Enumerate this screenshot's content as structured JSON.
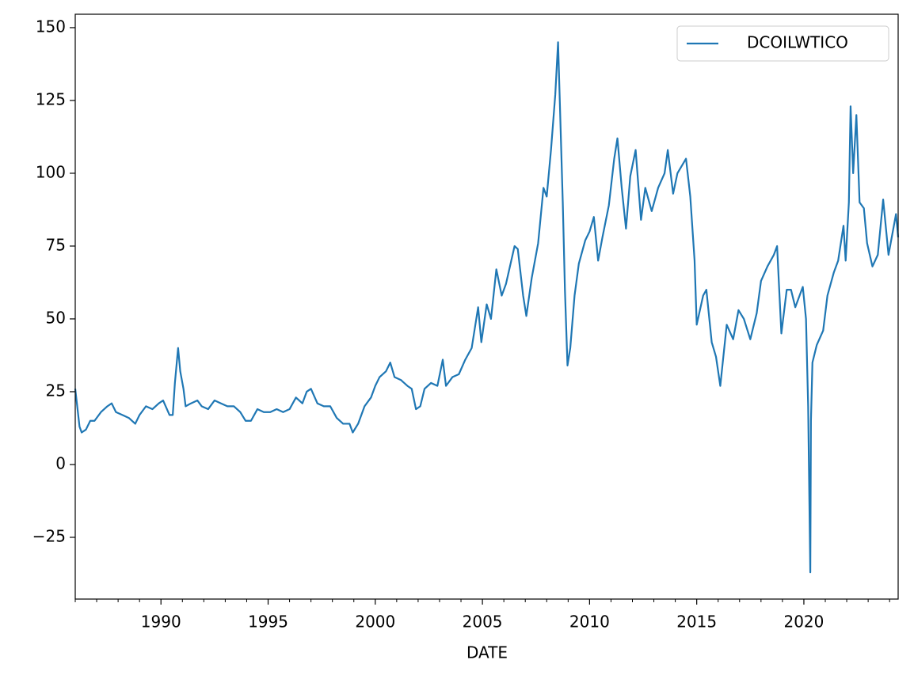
{
  "chart_data": {
    "type": "line",
    "xlabel": "DATE",
    "x": [
      1986.0,
      1986.2,
      1986.3,
      1986.5,
      1986.7,
      1986.9,
      1987.2,
      1987.5,
      1987.7,
      1987.9,
      1988.2,
      1988.5,
      1988.8,
      1989.0,
      1989.3,
      1989.6,
      1989.9,
      1990.1,
      1990.4,
      1990.55,
      1990.65,
      1990.8,
      1990.9,
      1991.05,
      1991.15,
      1991.4,
      1991.7,
      1991.9,
      1992.2,
      1992.5,
      1992.8,
      1993.1,
      1993.4,
      1993.7,
      1993.95,
      1994.2,
      1994.5,
      1994.8,
      1995.1,
      1995.4,
      1995.7,
      1996.0,
      1996.3,
      1996.6,
      1996.8,
      1997.0,
      1997.3,
      1997.6,
      1997.9,
      1998.2,
      1998.5,
      1998.8,
      1998.95,
      1999.2,
      1999.5,
      1999.8,
      2000.0,
      2000.2,
      2000.5,
      2000.7,
      2000.9,
      2001.2,
      2001.5,
      2001.7,
      2001.9,
      2002.1,
      2002.3,
      2002.6,
      2002.9,
      2003.15,
      2003.3,
      2003.6,
      2003.9,
      2004.2,
      2004.5,
      2004.8,
      2004.95,
      2005.2,
      2005.4,
      2005.65,
      2005.9,
      2006.1,
      2006.5,
      2006.65,
      2006.9,
      2007.05,
      2007.3,
      2007.6,
      2007.85,
      2008.0,
      2008.2,
      2008.4,
      2008.53,
      2008.65,
      2008.75,
      2008.85,
      2008.97,
      2009.1,
      2009.3,
      2009.5,
      2009.8,
      2010.0,
      2010.2,
      2010.4,
      2010.6,
      2010.9,
      2011.15,
      2011.3,
      2011.5,
      2011.7,
      2011.9,
      2012.15,
      2012.4,
      2012.6,
      2012.9,
      2013.2,
      2013.5,
      2013.65,
      2013.9,
      2014.1,
      2014.5,
      2014.7,
      2014.9,
      2015.0,
      2015.3,
      2015.45,
      2015.7,
      2015.9,
      2016.1,
      2016.4,
      2016.7,
      2016.95,
      2017.2,
      2017.5,
      2017.8,
      2018.0,
      2018.3,
      2018.6,
      2018.75,
      2018.95,
      2019.2,
      2019.4,
      2019.6,
      2019.95,
      2020.1,
      2020.2,
      2020.3,
      2020.33,
      2020.4,
      2020.6,
      2020.9,
      2021.1,
      2021.4,
      2021.6,
      2021.85,
      2021.95,
      2022.1,
      2022.18,
      2022.3,
      2022.45,
      2022.6,
      2022.8,
      2022.95,
      2023.2,
      2023.45,
      2023.7,
      2023.95,
      2024.15,
      2024.3,
      2024.4
    ],
    "series": [
      {
        "name": "DCOILWTICO",
        "color": "#1f77b4",
        "values": [
          26,
          13,
          11,
          12,
          15,
          15,
          18,
          20,
          21,
          18,
          17,
          16,
          14,
          17,
          20,
          19,
          21,
          22,
          17,
          17,
          28,
          40,
          32,
          26,
          20,
          21,
          22,
          20,
          19,
          22,
          21,
          20,
          20,
          18,
          15,
          15,
          19,
          18,
          18,
          19,
          18,
          19,
          23,
          21,
          25,
          26,
          21,
          20,
          20,
          16,
          14,
          14,
          11,
          14,
          20,
          23,
          27,
          30,
          32,
          35,
          30,
          29,
          27,
          26,
          19,
          20,
          26,
          28,
          27,
          36,
          27,
          30,
          31,
          36,
          40,
          54,
          42,
          55,
          50,
          67,
          58,
          62,
          75,
          74,
          58,
          51,
          64,
          76,
          95,
          92,
          108,
          127,
          145,
          115,
          90,
          60,
          34,
          40,
          58,
          69,
          77,
          80,
          85,
          70,
          78,
          89,
          105,
          112,
          95,
          81,
          99,
          108,
          84,
          95,
          87,
          95,
          100,
          108,
          93,
          100,
          105,
          92,
          70,
          48,
          58,
          60,
          42,
          37,
          27,
          48,
          43,
          53,
          50,
          43,
          52,
          63,
          68,
          72,
          75,
          45,
          60,
          60,
          54,
          61,
          50,
          20,
          -37,
          15,
          35,
          41,
          46,
          58,
          66,
          70,
          82,
          70,
          90,
          123,
          100,
          120,
          90,
          88,
          76,
          68,
          72,
          91,
          72,
          80,
          86,
          78
        ]
      }
    ],
    "xlim": [
      1986.0,
      2024.4
    ],
    "ylim": [
      -46.2,
      154.6
    ],
    "xticks": [
      1990,
      1995,
      2000,
      2005,
      2010,
      2015,
      2020
    ],
    "xminorticks": [
      1986,
      1987,
      1988,
      1989,
      1991,
      1992,
      1993,
      1994,
      1996,
      1997,
      1998,
      1999,
      2001,
      2002,
      2003,
      2004,
      2006,
      2007,
      2008,
      2009,
      2011,
      2012,
      2013,
      2014,
      2016,
      2017,
      2018,
      2019,
      2021,
      2022,
      2023,
      2024
    ],
    "yticks": [
      {
        "value": -25,
        "label": "−25"
      },
      0,
      25,
      50,
      75,
      100,
      125,
      150
    ],
    "legend": "upper right"
  }
}
